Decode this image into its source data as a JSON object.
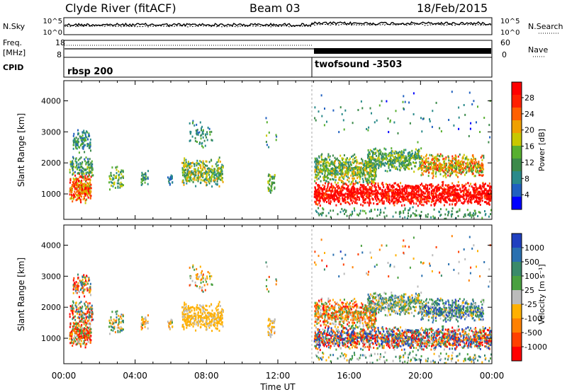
{
  "header": {
    "station": "Clyde River (fitACF)",
    "beam": "Beam 03",
    "date": "18/Feb/2015"
  },
  "top_strips": {
    "nsky_label": "N.Sky",
    "nsearch_label": "N.Search",
    "nsky_tick_high": "10^5",
    "nsky_tick_low": "10^0",
    "freq_label": "Freq.",
    "freq_unit": "[MHz]",
    "freq_tick_high": "18",
    "freq_tick_low": "8",
    "nave_label": "Nave",
    "nave_tick_high": "60",
    "nave_tick_low": "0",
    "cpid_label": "CPID",
    "cpid_segments": [
      "rbsp 200",
      "twofsound -3503"
    ]
  },
  "colorbars": {
    "power": {
      "label": "Power [dB]",
      "ticks": [
        "28",
        "24",
        "20",
        "16",
        "12",
        "8",
        "4"
      ],
      "colors": [
        "#0000ff",
        "#2060c0",
        "#2a8a8a",
        "#3c8a4a",
        "#58b030",
        "#c8c800",
        "#f0a000",
        "#ff6000",
        "#ff2000",
        "#ff0000"
      ]
    },
    "velocity": {
      "label": "Velocity [m s⁻¹]",
      "ticks": [
        "1000",
        "500",
        "100",
        "25",
        "-25",
        "-100",
        "-500",
        "-1000"
      ],
      "colors": [
        "#2040c0",
        "#2a70b0",
        "#3a8a6a",
        "#4aa040",
        "#bbbbbb",
        "#ffb000",
        "#ff8000",
        "#ff4000",
        "#ff0000"
      ]
    }
  },
  "chart_data": [
    {
      "type": "heatmap",
      "title": "",
      "xlabel": "Time UT",
      "ylabel": "Slant Range [km]",
      "x_ticks": [
        "00:00",
        "04:00",
        "08:00",
        "12:00",
        "16:00",
        "20:00",
        "00:00"
      ],
      "y_ticks": [
        1000,
        2000,
        3000,
        4000
      ],
      "ylim": [
        180,
        4650
      ],
      "xlim_hours": [
        0,
        24
      ],
      "value_label": "Power [dB]",
      "value_range": [
        0,
        30
      ]
    },
    {
      "type": "heatmap",
      "title": "",
      "xlabel": "Time UT",
      "ylabel": "Slant Range [km]",
      "x_ticks": [
        "00:00",
        "04:00",
        "08:00",
        "12:00",
        "16:00",
        "20:00",
        "00:00"
      ],
      "y_ticks": [
        1000,
        2000,
        3000,
        4000
      ],
      "ylim": [
        180,
        4650
      ],
      "xlim_hours": [
        0,
        24
      ],
      "value_label": "Velocity [m s⁻¹]",
      "value_range": [
        -1000,
        1000
      ]
    }
  ],
  "x_axis_title": "Time UT"
}
